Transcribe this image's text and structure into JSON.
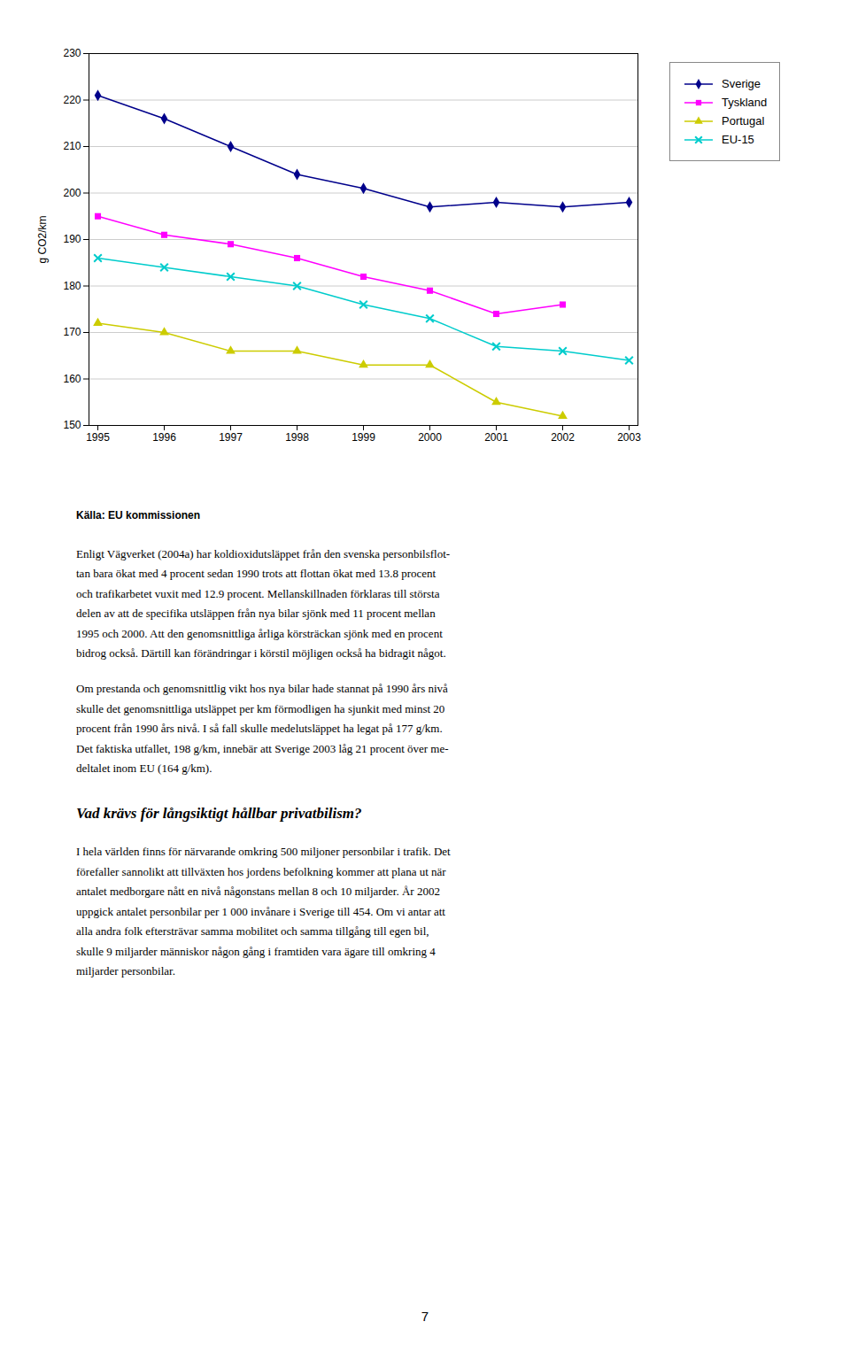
{
  "chart_data": {
    "type": "line",
    "ylabel": "g CO2/km",
    "x": [
      1995,
      1996,
      1997,
      1998,
      1999,
      2000,
      2001,
      2002,
      2003
    ],
    "xlim": [
      1995,
      2003
    ],
    "xticks": [
      1995,
      1996,
      1997,
      1998,
      1999,
      2000,
      2001,
      2002,
      2003
    ],
    "ylim": [
      150,
      230
    ],
    "yticks": [
      150,
      160,
      170,
      180,
      190,
      200,
      210,
      220,
      230
    ],
    "grid": true,
    "legend": "right",
    "series": [
      {
        "name": "Sverige",
        "color": "#00008B",
        "marker": "diamond",
        "values": [
          221,
          216,
          210,
          204,
          201,
          197,
          198,
          197,
          198
        ]
      },
      {
        "name": "Tyskland",
        "color": "#FF00FF",
        "marker": "square",
        "values": [
          195,
          191,
          189,
          186,
          182,
          179,
          174,
          176,
          null
        ]
      },
      {
        "name": "Portugal",
        "color": "#CCCC00",
        "marker": "triangle",
        "values": [
          172,
          170,
          166,
          166,
          163,
          163,
          155,
          152,
          null
        ]
      },
      {
        "name": "EU-15",
        "color": "#00CCCC",
        "marker": "x",
        "values": [
          186,
          184,
          182,
          180,
          176,
          173,
          167,
          166,
          164
        ]
      }
    ],
    "annotations": [
      {
        "type": "source",
        "text": "Källa: EU kommissionen"
      },
      {
        "type": "paragraph",
        "lines": [
          "Enligt Vägverket (2004a) har koldioxidutsläppet från den svenska personbilsflot-",
          "tan bara ökat med 4 procent sedan 1990 trots att flottan ökat med 13.8 procent",
          "och trafikarbetet vuxit med 12.9 procent. Mellanskillnaden förklaras till största",
          "delen av att de specifika utsläppen från nya bilar sjönk med 11 procent mellan",
          "1995 och 2000. Att den genomsnittliga årliga körsträckan sjönk med en procent",
          "bidrog också. Därtill kan förändringar i körstil möjligen också ha bidragit något."
        ]
      },
      {
        "type": "paragraph",
        "lines": [
          "Om prestanda och genomsnittlig vikt hos nya bilar hade stannat på 1990 års nivå",
          "skulle det genomsnittliga utsläppet per km förmodligen ha sjunkit med minst 20",
          "procent från 1990 års nivå. I så fall skulle medelutsläppet ha legat på 177 g/km.",
          "Det faktiska utfallet, 198 g/km, innebär att Sverige 2003 låg 21 procent över me-",
          "deltalet inom EU (164 g/km)."
        ]
      },
      {
        "type": "heading",
        "text": "Vad krävs för långsiktigt hållbar privatbilism?"
      },
      {
        "type": "paragraph",
        "lines": [
          "I hela världen finns för närvarande omkring 500 miljoner personbilar i trafik. Det",
          "förefaller sannolikt att tillväxten hos jordens befolkning kommer att plana ut när",
          "antalet medborgare nått en nivå någonstans mellan 8 och 10 miljarder. År 2002",
          "uppgick antalet personbilar per 1 000 invånare i Sverige till 454. Om vi antar att",
          "alla andra folk eftersträvar samma mobilitet och samma tillgång till egen bil,",
          "skulle 9 miljarder människor någon gång i framtiden vara ägare till omkring 4",
          "miljarder personbilar."
        ]
      },
      {
        "type": "page_number",
        "text": "7"
      }
    ]
  }
}
